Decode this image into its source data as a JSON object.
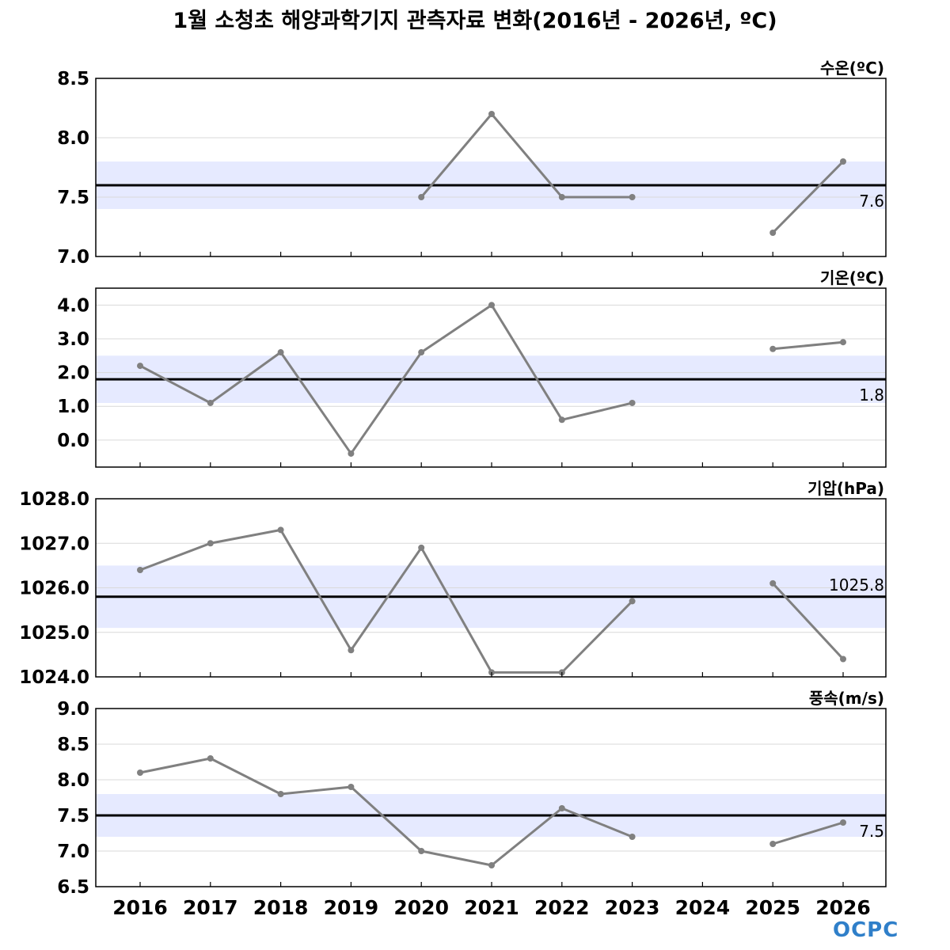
{
  "title": "1월 소청초 해양과학기지 관측자료 변화(2016년 - 2026년, ºC)",
  "logo_text": "OCPC",
  "colors": {
    "series_line": "#808080",
    "mean_line": "#000000",
    "band_fill": "#e6eaff",
    "grid": "#d9d9d9",
    "logo": "#2f7fc9"
  },
  "chart_data": [
    {
      "type": "line",
      "label": "수온(ºC)",
      "x": [
        "2016",
        "2017",
        "2018",
        "2019",
        "2020",
        "2021",
        "2022",
        "2023",
        "2024",
        "2025",
        "2026"
      ],
      "values": [
        null,
        null,
        null,
        null,
        7.5,
        8.2,
        7.5,
        7.5,
        null,
        7.2,
        7.8
      ],
      "mean": 7.6,
      "mean_label": "7.6",
      "band": [
        7.4,
        7.8
      ],
      "ylim": [
        7.0,
        8.5
      ],
      "yticks": [
        7.0,
        7.5,
        8.0,
        8.5
      ],
      "ytick_labels": [
        "7.0",
        "7.5",
        "8.0",
        "8.5"
      ],
      "grid": true
    },
    {
      "type": "line",
      "label": "기온(ºC)",
      "x": [
        "2016",
        "2017",
        "2018",
        "2019",
        "2020",
        "2021",
        "2022",
        "2023",
        "2024",
        "2025",
        "2026"
      ],
      "values": [
        2.2,
        1.1,
        2.6,
        -0.4,
        2.6,
        4.0,
        0.6,
        1.1,
        null,
        2.7,
        2.9
      ],
      "mean": 1.8,
      "mean_label": "1.8",
      "band": [
        1.1,
        2.5
      ],
      "ylim": [
        -0.8,
        4.5
      ],
      "yticks": [
        0.0,
        1.0,
        2.0,
        3.0,
        4.0
      ],
      "ytick_labels": [
        "0.0",
        "1.0",
        "2.0",
        "3.0",
        "4.0"
      ],
      "grid": true
    },
    {
      "type": "line",
      "label": "기압(hPa)",
      "x": [
        "2016",
        "2017",
        "2018",
        "2019",
        "2020",
        "2021",
        "2022",
        "2023",
        "2024",
        "2025",
        "2026"
      ],
      "values": [
        1026.4,
        1027.0,
        1027.3,
        1024.6,
        1026.9,
        1024.1,
        1024.1,
        1025.7,
        null,
        1026.1,
        1024.4
      ],
      "mean": 1025.8,
      "mean_label": "1025.8",
      "band": [
        1025.1,
        1026.5
      ],
      "ylim": [
        1024.0,
        1028.0
      ],
      "yticks": [
        1024.0,
        1025.0,
        1026.0,
        1027.0,
        1028.0
      ],
      "ytick_labels": [
        "1024.0",
        "1025.0",
        "1026.0",
        "1027.0",
        "1028.0"
      ],
      "grid": true
    },
    {
      "type": "line",
      "label": "풍속(m/s)",
      "x": [
        "2016",
        "2017",
        "2018",
        "2019",
        "2020",
        "2021",
        "2022",
        "2023",
        "2024",
        "2025",
        "2026"
      ],
      "values": [
        8.1,
        8.3,
        7.8,
        7.9,
        7.0,
        6.8,
        7.6,
        7.2,
        null,
        7.1,
        7.4
      ],
      "mean": 7.5,
      "mean_label": "7.5",
      "band": [
        7.2,
        7.8
      ],
      "ylim": [
        6.5,
        9.0
      ],
      "yticks": [
        6.5,
        7.0,
        7.5,
        8.0,
        8.5,
        9.0
      ],
      "ytick_labels": [
        "6.5",
        "7.0",
        "7.5",
        "8.0",
        "8.5",
        "9.0"
      ],
      "grid": true
    }
  ],
  "x_tick_labels": [
    "2016",
    "2017",
    "2018",
    "2019",
    "2020",
    "2021",
    "2022",
    "2023",
    "2024",
    "2025",
    "2026"
  ]
}
